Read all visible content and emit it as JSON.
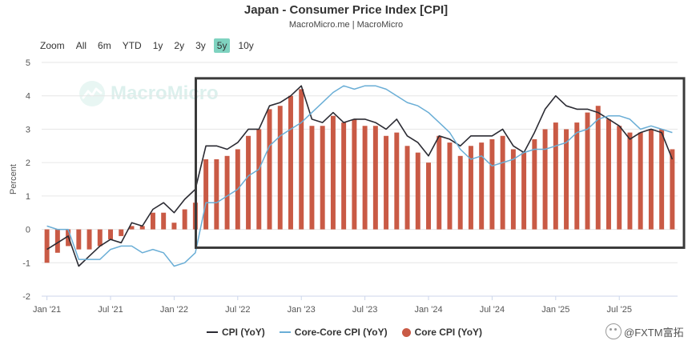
{
  "chart_data": {
    "type": "line",
    "title": "Japan - Consumer Price Index [CPI]",
    "subtitle": "MacroMicro.me | MacroMicro",
    "watermark": "MacroMicro",
    "ylabel": "Percent",
    "ylim": [
      -2,
      5
    ],
    "yticks": [
      -2,
      -1,
      0,
      1,
      2,
      3,
      4,
      5
    ],
    "x_tick_labels": [
      "Jan '21",
      "Jul '21",
      "Jan '22",
      "Jul '22",
      "Jan '23",
      "Jul '23",
      "Jan '24",
      "Jul '24",
      "Jan '25",
      "Jul '25"
    ],
    "x": [
      "2021-01",
      "2021-02",
      "2021-03",
      "2021-04",
      "2021-05",
      "2021-06",
      "2021-07",
      "2021-08",
      "2021-09",
      "2021-10",
      "2021-11",
      "2021-12",
      "2022-01",
      "2022-02",
      "2022-03",
      "2022-04",
      "2022-05",
      "2022-06",
      "2022-07",
      "2022-08",
      "2022-09",
      "2022-10",
      "2022-11",
      "2022-12",
      "2023-01",
      "2023-02",
      "2023-03",
      "2023-04",
      "2023-05",
      "2023-06",
      "2023-07",
      "2023-08",
      "2023-09",
      "2023-10",
      "2023-11",
      "2023-12",
      "2024-01",
      "2024-02",
      "2024-03",
      "2024-04",
      "2024-05",
      "2024-06",
      "2024-07",
      "2024-08",
      "2024-09",
      "2024-10",
      "2024-11",
      "2024-12",
      "2025-01",
      "2025-02",
      "2025-03",
      "2025-04",
      "2025-05",
      "2025-06",
      "2025-07",
      "2025-08",
      "2025-09",
      "2025-10",
      "2025-11",
      "2025-12"
    ],
    "series": [
      {
        "name": "CPI (YoY)",
        "kind": "line",
        "color": "#2b2b33",
        "values": [
          -0.6,
          -0.4,
          -0.2,
          -1.1,
          -0.8,
          -0.5,
          -0.3,
          -0.4,
          0.2,
          0.1,
          0.6,
          0.8,
          0.5,
          0.9,
          1.2,
          2.5,
          2.5,
          2.4,
          2.6,
          3.0,
          3.0,
          3.7,
          3.8,
          4.0,
          4.3,
          3.3,
          3.2,
          3.5,
          3.2,
          3.3,
          3.3,
          3.2,
          3.0,
          3.3,
          2.8,
          2.6,
          2.2,
          2.8,
          2.7,
          2.5,
          2.8,
          2.8,
          2.8,
          3.0,
          2.5,
          2.3,
          2.9,
          3.6,
          4.0,
          3.7,
          3.6,
          3.6,
          3.5,
          3.3,
          3.1,
          2.7,
          2.9,
          3.0,
          2.9,
          2.1
        ]
      },
      {
        "name": "Core-Core CPI (YoY)",
        "kind": "line",
        "color": "#6aaed6",
        "values": [
          0.1,
          0.0,
          0.0,
          -0.9,
          -0.9,
          -0.9,
          -0.6,
          -0.5,
          -0.5,
          -0.7,
          -0.6,
          -0.7,
          -1.1,
          -1.0,
          -0.7,
          0.8,
          0.8,
          1.0,
          1.2,
          1.6,
          1.8,
          2.5,
          2.8,
          3.0,
          3.2,
          3.5,
          3.8,
          4.1,
          4.3,
          4.2,
          4.3,
          4.3,
          4.2,
          4.0,
          3.8,
          3.7,
          3.5,
          3.2,
          2.9,
          2.4,
          2.1,
          2.2,
          1.9,
          2.0,
          2.1,
          2.3,
          2.4,
          2.4,
          2.5,
          2.6,
          2.9,
          3.0,
          3.3,
          3.4,
          3.4,
          3.3,
          3.0,
          3.1,
          3.0,
          2.9
        ]
      },
      {
        "name": "Core CPI (YoY)",
        "kind": "bar",
        "color": "#c95a45",
        "values": [
          -1.0,
          -0.7,
          -0.5,
          -0.6,
          -0.6,
          -0.5,
          -0.3,
          -0.2,
          0.1,
          0.1,
          0.5,
          0.5,
          0.2,
          0.6,
          0.8,
          2.1,
          2.1,
          2.2,
          2.4,
          2.8,
          3.0,
          3.6,
          3.7,
          4.0,
          4.2,
          3.1,
          3.1,
          3.4,
          3.2,
          3.3,
          3.1,
          3.1,
          2.8,
          2.9,
          2.5,
          2.3,
          2.0,
          2.8,
          2.6,
          2.2,
          2.5,
          2.6,
          2.7,
          2.8,
          2.4,
          2.3,
          2.7,
          3.0,
          3.2,
          3.0,
          3.2,
          3.5,
          3.7,
          3.3,
          3.1,
          2.9,
          2.9,
          3.0,
          3.0,
          2.4
        ]
      }
    ],
    "legend": [
      "CPI (YoY)",
      "Core-Core CPI (YoY)",
      "Core CPI (YoY)"
    ],
    "legend_placement": "bottom",
    "grid": true
  },
  "toolbar": {
    "zoom_label": "Zoom",
    "ranges": [
      {
        "label": "All",
        "active": false
      },
      {
        "label": "6m",
        "active": false
      },
      {
        "label": "YTD",
        "active": false
      },
      {
        "label": "1y",
        "active": false
      },
      {
        "label": "2y",
        "active": false
      },
      {
        "label": "3y",
        "active": false
      },
      {
        "label": "5y",
        "active": true
      },
      {
        "label": "10y",
        "active": false
      }
    ],
    "active_color": "#7fd3c0"
  },
  "credit": {
    "text": "@FXTM富拓",
    "icon": "wechat-icon"
  },
  "highlight_box": {
    "from": "2022-04",
    "to": "2025-12",
    "ymin": -0.5,
    "ymax": 4.5
  }
}
